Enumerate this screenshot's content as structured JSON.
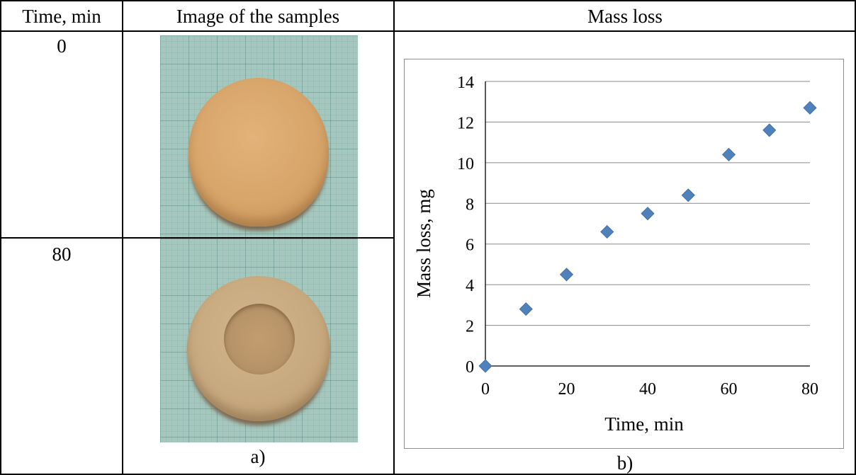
{
  "table": {
    "headers": {
      "time": "Time, min",
      "image": "Image of the samples",
      "mass": "Mass loss"
    },
    "rows": [
      {
        "time": "0"
      },
      {
        "time": "80"
      }
    ],
    "caption_a": "a)",
    "caption_b": "b)"
  },
  "colors": {
    "marker": "#4f81bd",
    "sample_0": "#d7a56a",
    "sample_80": "#c7a87e",
    "graph_paper": "#a6c7be"
  },
  "chart_data": {
    "type": "scatter",
    "xlabel": "Time, min",
    "ylabel": "Mass loss, mg",
    "xlim": [
      0,
      80
    ],
    "ylim": [
      0,
      14
    ],
    "xticks": [
      0,
      20,
      40,
      60,
      80
    ],
    "yticks": [
      0,
      2,
      4,
      6,
      8,
      10,
      12,
      14
    ],
    "grid": "horizontal",
    "legend": "none",
    "marker": "diamond",
    "series": [
      {
        "x": [
          0,
          10,
          20,
          30,
          40,
          50,
          60,
          70,
          80
        ],
        "y": [
          0,
          2.8,
          4.5,
          6.6,
          7.5,
          8.4,
          10.4,
          11.6,
          12.7
        ]
      }
    ]
  }
}
